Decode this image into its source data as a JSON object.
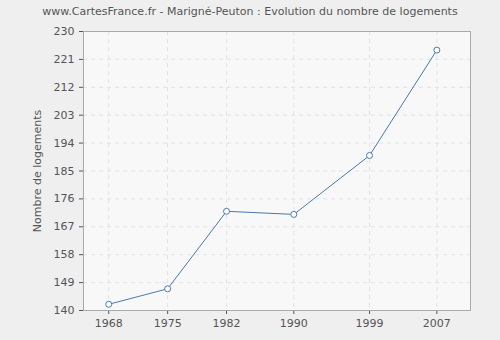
{
  "chart_data": {
    "type": "line",
    "title": "www.CartesFrance.fr - Marigné-Peuton : Evolution du nombre de logements",
    "y_label": "Nombre de logements",
    "x": [
      1968,
      1975,
      1982,
      1990,
      1999,
      2007
    ],
    "values": [
      142,
      147,
      172,
      171,
      190,
      224
    ],
    "color": "#4a79a8",
    "marker": "circle",
    "xlim": [
      1965,
      2011
    ],
    "xticks": [
      1968,
      1975,
      1982,
      1990,
      1999,
      2007
    ],
    "ylim": [
      140,
      230
    ],
    "yticks": [
      140,
      149,
      158,
      167,
      176,
      185,
      194,
      203,
      212,
      221,
      230
    ],
    "grid": true
  }
}
